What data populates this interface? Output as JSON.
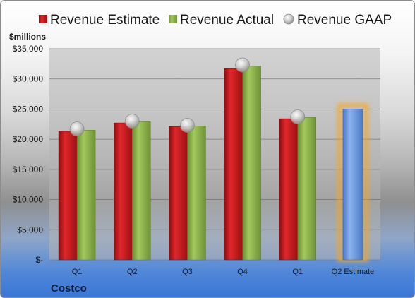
{
  "chart_data": {
    "type": "bar",
    "units_label": "$millions",
    "company": "Costco",
    "categories": [
      "Q1",
      "Q2",
      "Q3",
      "Q4",
      "Q1",
      "Q2 Estimate"
    ],
    "series": [
      {
        "name": "Revenue Estimate",
        "kind": "bar",
        "color": "#c8161b",
        "values": [
          21300,
          22700,
          22100,
          31700,
          23400,
          null
        ]
      },
      {
        "name": "Revenue Actual",
        "kind": "bar",
        "color": "#8cb44a",
        "values": [
          21500,
          22900,
          22200,
          32100,
          23600,
          null
        ]
      },
      {
        "name": "Revenue GAAP",
        "kind": "marker",
        "color": "#a9a9a9",
        "values": [
          21700,
          23000,
          22300,
          32300,
          23700,
          null
        ]
      },
      {
        "name": "Q2 Estimate",
        "kind": "highlight-bar",
        "color": "#6d9eea",
        "glow": "#f5a623",
        "values": [
          null,
          null,
          null,
          null,
          null,
          25000
        ]
      }
    ],
    "y_ticks": [
      "$35,000",
      "$30,000",
      "$25,000",
      "$20,000",
      "$15,000",
      "$10,000",
      "$5,000",
      "$-"
    ],
    "ylim": [
      0,
      35000
    ],
    "grid": true,
    "legend_position": "top"
  }
}
